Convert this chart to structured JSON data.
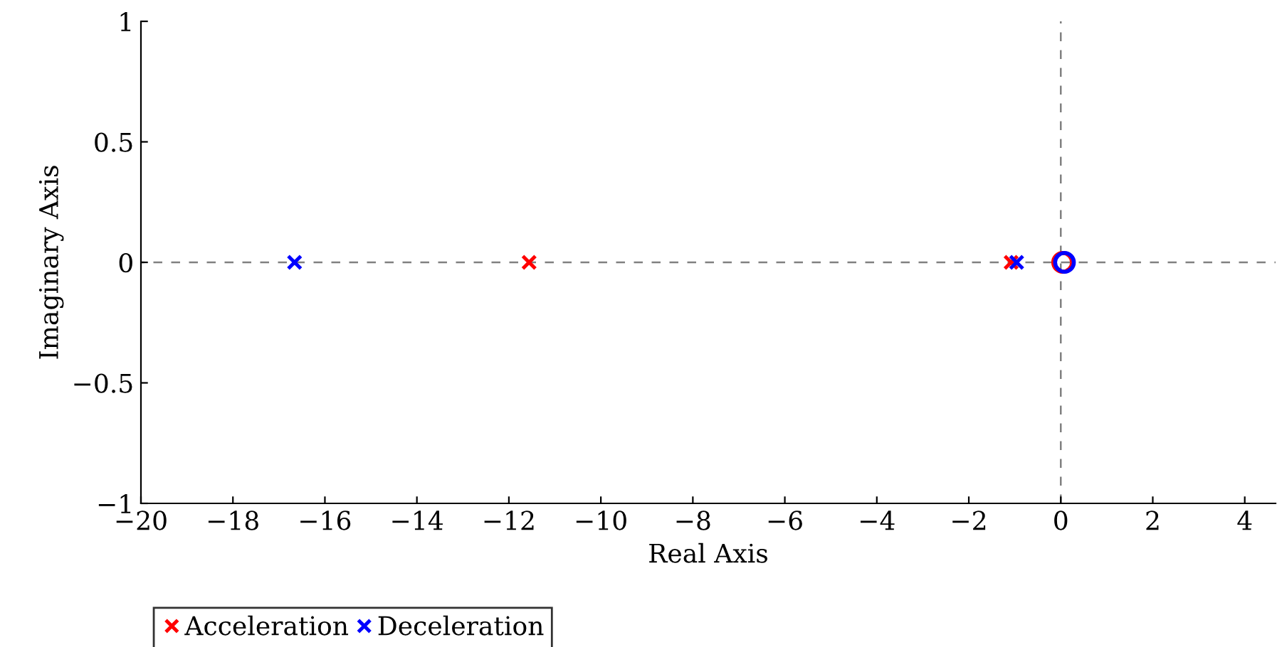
{
  "chart_data": {
    "type": "scatter",
    "xlabel": "Real Axis",
    "ylabel": "Imaginary Axis",
    "series": [
      {
        "name": "Acceleration",
        "color": "#ff0000",
        "marker": "cross",
        "x": [
          -11.56,
          -1.08
        ],
        "values": [
          0,
          0
        ]
      },
      {
        "name": "Deceleration",
        "color": "#0000ff",
        "marker": "cross",
        "x": [
          -16.66,
          -0.96
        ],
        "values": [
          0,
          0
        ]
      },
      {
        "color": "#ff0000",
        "marker": "circle",
        "x": [
          0.04
        ],
        "values": [
          0
        ]
      },
      {
        "color": "#0000ff",
        "marker": "circle",
        "x": [
          0.08
        ],
        "values": [
          0
        ]
      }
    ],
    "xlim": [
      -20,
      4.67
    ],
    "xticks": [
      -20,
      -18,
      -16,
      -14,
      -12,
      -10,
      -8,
      -6,
      -4,
      -2,
      0,
      2,
      4
    ],
    "ylim": [
      -1,
      1
    ],
    "yticks": [
      -1,
      -0.5,
      0,
      0.5,
      1
    ],
    "ref_lines": [
      {
        "axis": "x",
        "value": 0,
        "color": "#808080",
        "line_style": "dashed"
      },
      {
        "axis": "y",
        "value": 0,
        "color": "#808080",
        "line_style": "dashed"
      }
    ],
    "grid": false,
    "legend": "bottom left"
  }
}
